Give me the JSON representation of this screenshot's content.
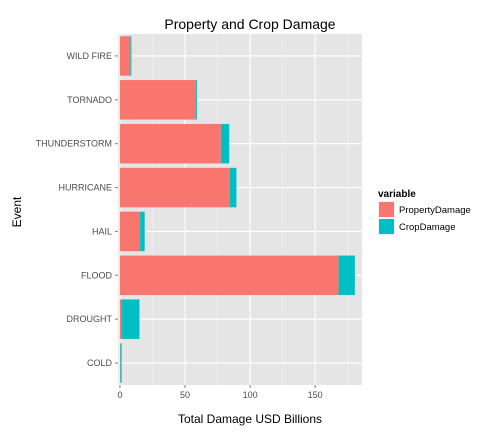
{
  "chart_data": {
    "type": "bar",
    "orientation": "horizontal",
    "stacked": true,
    "title": "Property and Crop Damage",
    "xlabel": "Total Damage USD Billions",
    "ylabel": "Event",
    "categories": [
      "COLD",
      "DROUGHT",
      "FLOOD",
      "HAIL",
      "HURRICANE",
      "THUNDERSTORM",
      "TORNADO",
      "WILD FIRE"
    ],
    "series": [
      {
        "name": "PropertyDamage",
        "color": "#F8766D",
        "values": [
          0.3,
          1.0,
          168.0,
          15.5,
          84.5,
          77.5,
          58.5,
          8.0
        ]
      },
      {
        "name": "CropDamage",
        "color": "#00BFC4",
        "values": [
          1.0,
          14.0,
          12.5,
          3.5,
          5.0,
          6.5,
          0.7,
          0.8
        ]
      }
    ],
    "xlim": [
      -1.5,
      186
    ],
    "xticks": [
      0,
      50,
      100,
      150
    ],
    "grid": true,
    "legend": {
      "title": "variable",
      "placement": "right"
    }
  }
}
